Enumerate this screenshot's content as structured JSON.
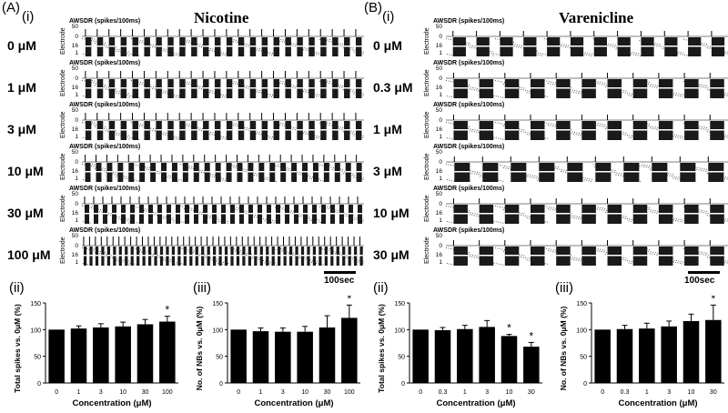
{
  "panelA": {
    "letter": "(A)",
    "sub_i": "(i)",
    "title": "Nicotine",
    "awsdr_label": "AWSDR (spikes/100ms)",
    "electrode_label": "Electrode",
    "electrode_ticks": [
      "50",
      "0",
      "16",
      "1"
    ],
    "concentrations": [
      "0 μM",
      "1 μM",
      "3 μM",
      "10 μM",
      "30 μM",
      "100 μM"
    ],
    "burst_counts": [
      24,
      24,
      24,
      26,
      31,
      48
    ],
    "scale_label": "100sec",
    "sub_ii": "(ii)",
    "sub_iii": "(iii)"
  },
  "panelB": {
    "letter": "(B)",
    "sub_i": "(i)",
    "title": "Varenicline",
    "awsdr_label": "AWSDR (spikes/100ms)",
    "electrode_label": "Electrode",
    "electrode_ticks": [
      "50",
      "0",
      "16",
      "1"
    ],
    "concentrations": [
      "0 μM",
      "0.3 μM",
      "1 μM",
      "3 μM",
      "10 μM",
      "30 μM"
    ],
    "burst_counts": [
      12,
      11,
      11,
      10,
      11,
      11
    ],
    "scale_label": "100sec",
    "sub_ii": "(ii)",
    "sub_iii": "(iii)"
  },
  "chart_data": [
    {
      "type": "bar",
      "panel": "A(ii)",
      "categories": [
        "0",
        "1",
        "3",
        "10",
        "30",
        "100"
      ],
      "values": [
        100,
        102,
        104,
        106,
        110,
        115
      ],
      "errors": [
        0,
        5,
        7,
        8,
        9,
        10
      ],
      "significant": [
        false,
        false,
        false,
        false,
        false,
        true
      ],
      "xlabel": "Concentration (μM)",
      "ylabel": "Total spikes vs. 0μM (%)",
      "ylim": [
        0,
        150
      ],
      "yticks": [
        0,
        50,
        100,
        150
      ]
    },
    {
      "type": "bar",
      "panel": "A(iii)",
      "categories": [
        "0",
        "1",
        "3",
        "10",
        "30",
        "100"
      ],
      "values": [
        100,
        97,
        96,
        96,
        104,
        122
      ],
      "errors": [
        0,
        6,
        7,
        10,
        22,
        24
      ],
      "significant": [
        false,
        false,
        false,
        false,
        false,
        true
      ],
      "xlabel": "Concentration (μM)",
      "ylabel": "No. of NBs vs. 0μM (%)",
      "ylim": [
        0,
        150
      ],
      "yticks": [
        0,
        50,
        100,
        150
      ]
    },
    {
      "type": "bar",
      "panel": "B(ii)",
      "categories": [
        "0",
        "0.3",
        "1",
        "3",
        "10",
        "30"
      ],
      "values": [
        100,
        99,
        101,
        105,
        88,
        68
      ],
      "errors": [
        0,
        5,
        7,
        12,
        3,
        8
      ],
      "significant": [
        false,
        false,
        false,
        false,
        true,
        true
      ],
      "xlabel": "Concentration (μM)",
      "ylabel": "Total spikes vs. 0μM (%)",
      "ylim": [
        0,
        150
      ],
      "yticks": [
        0,
        50,
        100,
        150
      ]
    },
    {
      "type": "bar",
      "panel": "B(iii)",
      "categories": [
        "0",
        "0.3",
        "1",
        "3",
        "10",
        "30"
      ],
      "values": [
        100,
        101,
        102,
        106,
        116,
        118
      ],
      "errors": [
        0,
        7,
        10,
        10,
        13,
        28
      ],
      "significant": [
        false,
        false,
        false,
        false,
        false,
        true
      ],
      "xlabel": "Concentration (μM)",
      "ylabel": "No. of NBs vs. 0μM (%)",
      "ylim": [
        0,
        150
      ],
      "yticks": [
        0,
        50,
        100,
        150
      ]
    }
  ],
  "significance_marker": "*"
}
